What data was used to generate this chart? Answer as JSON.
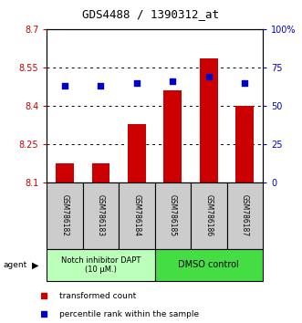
{
  "title": "GDS4488 / 1390312_at",
  "samples": [
    "GSM786182",
    "GSM786183",
    "GSM786184",
    "GSM786185",
    "GSM786186",
    "GSM786187"
  ],
  "bar_values": [
    8.175,
    8.175,
    8.33,
    8.46,
    8.585,
    8.4
  ],
  "percentile_values": [
    63,
    63,
    65,
    66,
    69,
    65
  ],
  "ylim_left": [
    8.1,
    8.7
  ],
  "ylim_right": [
    0,
    100
  ],
  "yticks_left": [
    8.1,
    8.25,
    8.4,
    8.55,
    8.7
  ],
  "yticks_right": [
    0,
    25,
    50,
    75,
    100
  ],
  "ytick_labels_left": [
    "8.1",
    "8.25",
    "8.4",
    "8.55",
    "8.7"
  ],
  "ytick_labels_right": [
    "0",
    "25",
    "50",
    "75",
    "100%"
  ],
  "bar_color": "#cc0000",
  "dot_color": "#0000cc",
  "group1_label": "Notch inhibitor DAPT\n(10 μM.)",
  "group2_label": "DMSO control",
  "group1_color": "#bbffbb",
  "group2_color": "#44dd44",
  "agent_label": "agent",
  "legend_bar_label": "transformed count",
  "legend_dot_label": "percentile rank within the sample",
  "left_tick_color": "#cc0000",
  "right_tick_color": "#0000cc",
  "background_color": "#ffffff",
  "bar_width": 0.5
}
